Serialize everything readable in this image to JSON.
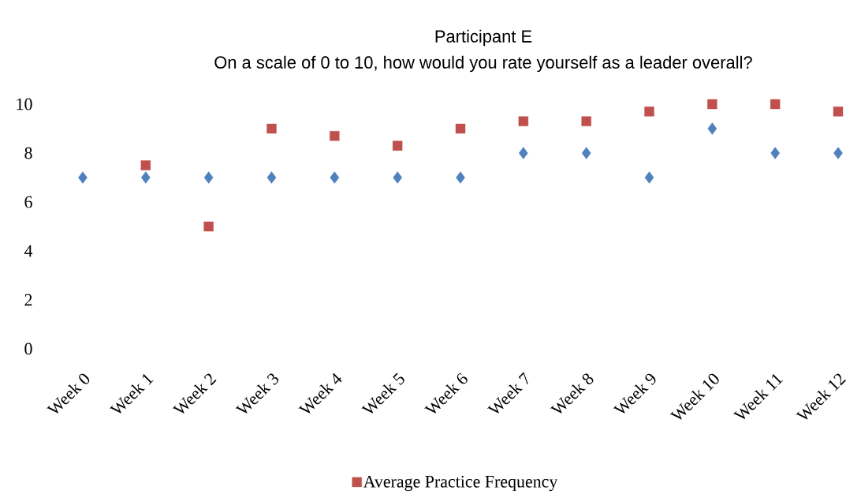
{
  "chart_data": {
    "type": "scatter",
    "title": "Participant E",
    "subtitle": "On a scale of 0 to 10, how would you rate yourself as a leader overall?",
    "categories": [
      "Week 0",
      "Week 1",
      "Week 2",
      "Week 3",
      "Week 4",
      "Week 5",
      "Week 6",
      "Week 7",
      "Week 8",
      "Week 9",
      "Week 10",
      "Week 11",
      "Week 12"
    ],
    "series": [
      {
        "color": "#4f81bd",
        "marker": "diamond",
        "values": [
          7,
          7,
          7,
          7,
          7,
          7,
          7,
          8,
          8,
          7,
          9,
          8,
          8
        ]
      },
      {
        "name": "Average Practice Frequency",
        "color": "#c0504d",
        "marker": "square",
        "values": [
          null,
          7.5,
          5,
          9,
          8.7,
          8.3,
          9,
          9.3,
          9.3,
          9.7,
          10,
          10,
          9.7
        ]
      }
    ],
    "ylim": [
      0,
      10
    ],
    "yticks": [
      0,
      2,
      4,
      6,
      8,
      10
    ],
    "grid": false,
    "legend": "bottom"
  }
}
